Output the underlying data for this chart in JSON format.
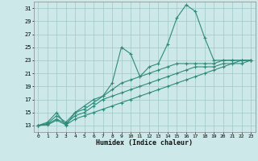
{
  "xlabel": "Humidex (Indice chaleur)",
  "x_values": [
    0,
    1,
    2,
    3,
    4,
    5,
    6,
    7,
    8,
    9,
    10,
    11,
    12,
    13,
    14,
    15,
    16,
    17,
    18,
    19,
    20,
    21,
    22,
    23
  ],
  "main_line_y": [
    13,
    13.5,
    15,
    13,
    15,
    16,
    17,
    17.5,
    19.5,
    25,
    24,
    20.5,
    22,
    22.5,
    25.5,
    29.5,
    31.5,
    30.5,
    26.5,
    23,
    23,
    23,
    23,
    23
  ],
  "line2_y": [
    13,
    13.3,
    14.5,
    13.5,
    15,
    15.5,
    16.5,
    17.5,
    18.5,
    19.5,
    20,
    20.5,
    21,
    21.5,
    22,
    22.5,
    22.5,
    22.5,
    22.5,
    22.5,
    23,
    23,
    23,
    23
  ],
  "line3_y": [
    13,
    13.2,
    14,
    13.3,
    14.5,
    15,
    16,
    17,
    17.5,
    18,
    18.5,
    19,
    19.5,
    20,
    20.5,
    21,
    21.5,
    22,
    22,
    22,
    22.5,
    22.5,
    22.5,
    23
  ],
  "line4_y": [
    13,
    13.1,
    13.8,
    13.1,
    14,
    14.5,
    15,
    15.5,
    16,
    16.5,
    17,
    17.5,
    18,
    18.5,
    19,
    19.5,
    20,
    20.5,
    21,
    21.5,
    22,
    22.5,
    23,
    23
  ],
  "line_color": "#2e8b7a",
  "bg_color": "#cce8e8",
  "grid_color": "#a0c8c8",
  "ylim": [
    12,
    32
  ],
  "yticks": [
    13,
    15,
    17,
    19,
    21,
    23,
    25,
    27,
    29,
    31
  ],
  "xticks": [
    0,
    1,
    2,
    3,
    4,
    5,
    6,
    7,
    8,
    9,
    10,
    11,
    12,
    13,
    14,
    15,
    16,
    17,
    18,
    19,
    20,
    21,
    22,
    23
  ]
}
